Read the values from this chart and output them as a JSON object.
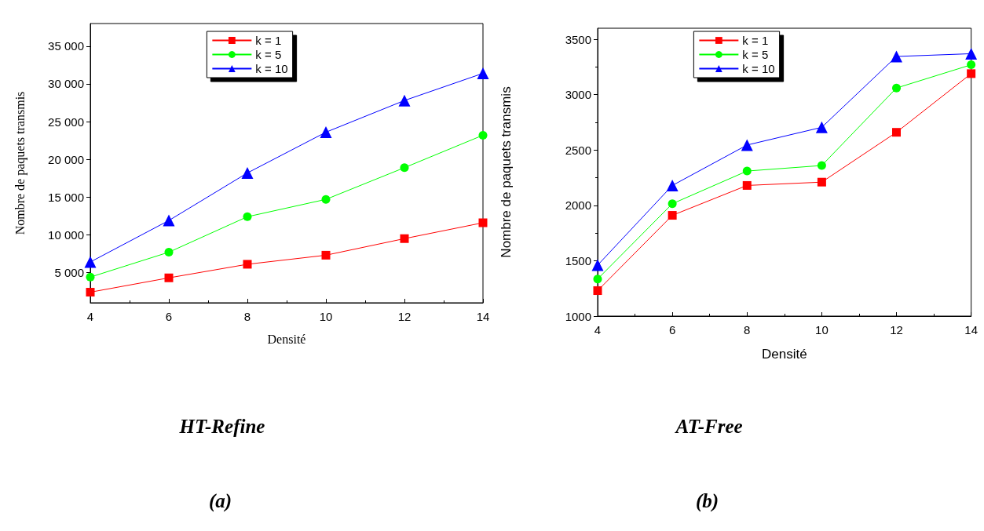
{
  "chart_data": [
    {
      "type": "line",
      "title": "HT-Refine",
      "xlabel": "Densité",
      "ylabel": "Nombre de paquets transmis",
      "annotations": [
        "(a)"
      ],
      "x": [
        4,
        6,
        8,
        10,
        12,
        14
      ],
      "xlim": [
        4,
        14
      ],
      "xticks": [
        4,
        6,
        8,
        10,
        12,
        14
      ],
      "ylim": [
        1000,
        38000
      ],
      "yticks": [
        {
          "value": 5000,
          "label": "5 000"
        },
        {
          "value": 10000,
          "label": "10 000"
        },
        {
          "value": 15000,
          "label": "15 000"
        },
        {
          "value": 20000,
          "label": "20 000"
        },
        {
          "value": 25000,
          "label": "25 000"
        },
        {
          "value": 30000,
          "label": "30 000"
        },
        {
          "value": 35000,
          "label": "35 000"
        }
      ],
      "grid": false,
      "legend": "top",
      "line_style": "solid",
      "series": [
        {
          "name": "k = 1",
          "color": "#ff0000",
          "marker": "square",
          "values": [
            2400,
            4300,
            6100,
            7300,
            9500,
            11600
          ]
        },
        {
          "name": "k = 5",
          "color": "#00ff00",
          "marker": "circle",
          "values": [
            4400,
            7700,
            12400,
            14700,
            18900,
            23200
          ]
        },
        {
          "name": "k = 10",
          "color": "#0000ff",
          "marker": "triangle",
          "values": [
            6400,
            11900,
            18200,
            23600,
            27800,
            31400
          ]
        }
      ]
    },
    {
      "type": "line",
      "title": "AT-Free",
      "xlabel": "Densité",
      "ylabel": "Nombre de paquets transmis",
      "annotations": [
        "(b)"
      ],
      "x": [
        4,
        6,
        8,
        10,
        12,
        14
      ],
      "xlim": [
        4,
        14
      ],
      "xticks": [
        4,
        6,
        8,
        10,
        12,
        14
      ],
      "ylim": [
        1000,
        3600
      ],
      "yticks": [
        1000,
        1500,
        2000,
        2500,
        3000,
        3500
      ],
      "grid": false,
      "legend": "top",
      "line_style": "solid",
      "series": [
        {
          "name": "k = 1",
          "color": "#ff0000",
          "marker": "square",
          "values": [
            1230,
            1910,
            2180,
            2210,
            2660,
            3190
          ]
        },
        {
          "name": "k = 5",
          "color": "#00ff00",
          "marker": "circle",
          "values": [
            1335,
            2015,
            2310,
            2360,
            3060,
            3270
          ]
        },
        {
          "name": "k = 10",
          "color": "#0000ff",
          "marker": "triangle",
          "values": [
            1460,
            2180,
            2545,
            2705,
            3345,
            3370
          ]
        }
      ]
    }
  ]
}
